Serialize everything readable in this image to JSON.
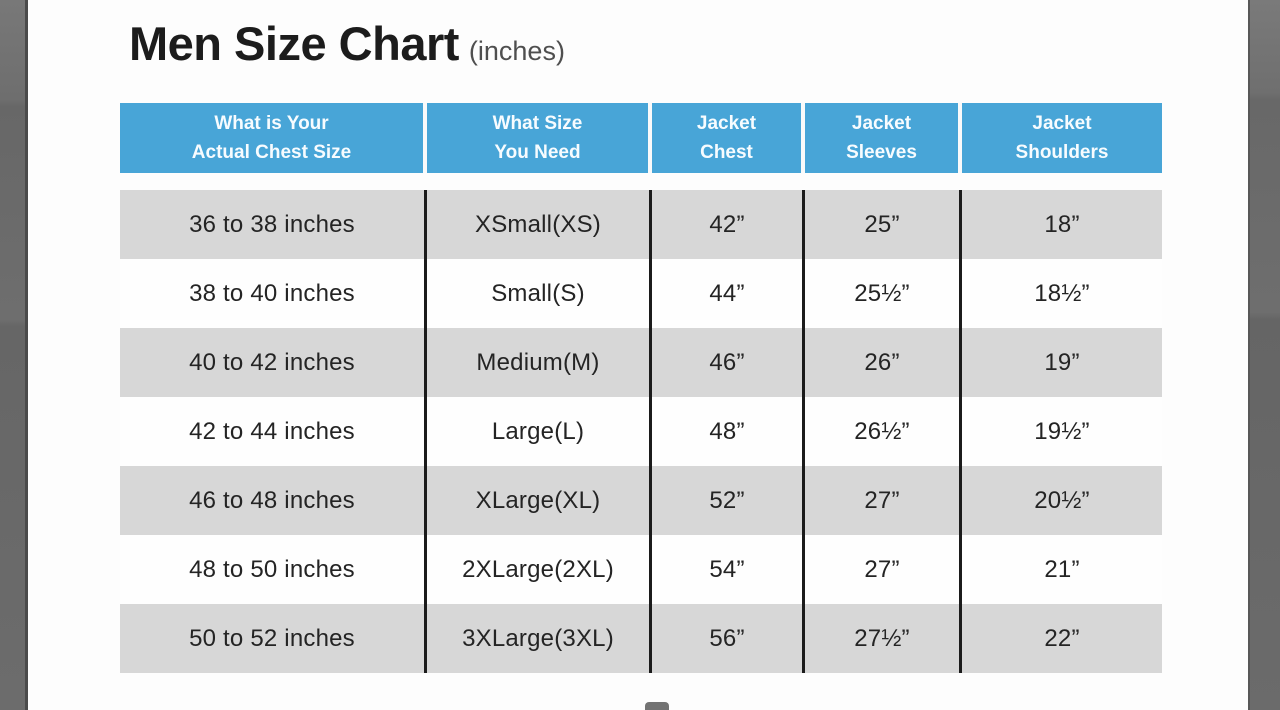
{
  "title": "Men Size Chart",
  "title_suffix": "(inches)",
  "colors": {
    "header_bg": "#48a5d7",
    "header_text": "#f7fcff",
    "row_stripe": "#d7d7d7",
    "body_text": "#242424",
    "divider": "#1b1b1b",
    "letterbox": "#6e6e6e"
  },
  "table": {
    "headers": [
      "What is Your\nActual Chest Size",
      "What Size\nYou Need",
      "Jacket\nChest",
      "Jacket\nSleeves",
      "Jacket\nShoulders"
    ],
    "rows": [
      [
        "36 to 38 inches",
        "XSmall(XS)",
        "42”",
        "25”",
        "18”"
      ],
      [
        "38 to 40 inches",
        "Small(S)",
        "44”",
        "25½”",
        "18½”"
      ],
      [
        "40 to 42 inches",
        "Medium(M)",
        "46”",
        "26”",
        "19”"
      ],
      [
        "42 to 44 inches",
        "Large(L)",
        "48”",
        "26½”",
        "19½”"
      ],
      [
        "46 to 48 inches",
        "XLarge(XL)",
        "52”",
        "27”",
        "20½”"
      ],
      [
        "48 to 50 inches",
        "2XLarge(2XL)",
        "54”",
        "27”",
        "21”"
      ],
      [
        "50 to 52 inches",
        "3XLarge(3XL)",
        "56”",
        "27½”",
        "22”"
      ]
    ]
  }
}
